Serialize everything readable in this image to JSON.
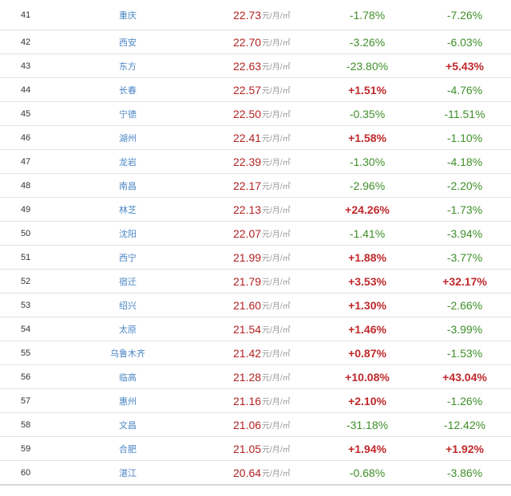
{
  "unit": "元/月/㎡",
  "colors": {
    "positive": "#c0282b",
    "negative": "#3f8f2a",
    "city_link": "#4a86c5",
    "price": "#b22222"
  },
  "rows": [
    {
      "rank": "41",
      "city": "重庆",
      "price": "22.73",
      "change1": "-1.78%",
      "change2": "-7.26%"
    },
    {
      "rank": "42",
      "city": "西安",
      "price": "22.70",
      "change1": "-3.26%",
      "change2": "-6.03%"
    },
    {
      "rank": "43",
      "city": "东方",
      "price": "22.63",
      "change1": "-23.80%",
      "change2": "+5.43%"
    },
    {
      "rank": "44",
      "city": "长春",
      "price": "22.57",
      "change1": "+1.51%",
      "change2": "-4.76%"
    },
    {
      "rank": "45",
      "city": "宁德",
      "price": "22.50",
      "change1": "-0.35%",
      "change2": "-11.51%"
    },
    {
      "rank": "46",
      "city": "湖州",
      "price": "22.41",
      "change1": "+1.58%",
      "change2": "-1.10%"
    },
    {
      "rank": "47",
      "city": "龙岩",
      "price": "22.39",
      "change1": "-1.30%",
      "change2": "-4.18%"
    },
    {
      "rank": "48",
      "city": "南昌",
      "price": "22.17",
      "change1": "-2.96%",
      "change2": "-2.20%"
    },
    {
      "rank": "49",
      "city": "林芝",
      "price": "22.13",
      "change1": "+24.26%",
      "change2": "-1.73%"
    },
    {
      "rank": "50",
      "city": "沈阳",
      "price": "22.07",
      "change1": "-1.41%",
      "change2": "-3.94%"
    },
    {
      "rank": "51",
      "city": "西宁",
      "price": "21.99",
      "change1": "+1.88%",
      "change2": "-3.77%"
    },
    {
      "rank": "52",
      "city": "宿迁",
      "price": "21.79",
      "change1": "+3.53%",
      "change2": "+32.17%"
    },
    {
      "rank": "53",
      "city": "绍兴",
      "price": "21.60",
      "change1": "+1.30%",
      "change2": "-2.66%"
    },
    {
      "rank": "54",
      "city": "太原",
      "price": "21.54",
      "change1": "+1.46%",
      "change2": "-3.99%"
    },
    {
      "rank": "55",
      "city": "乌鲁木齐",
      "price": "21.42",
      "change1": "+0.87%",
      "change2": "-1.53%"
    },
    {
      "rank": "56",
      "city": "临高",
      "price": "21.28",
      "change1": "+10.08%",
      "change2": "+43.04%"
    },
    {
      "rank": "57",
      "city": "惠州",
      "price": "21.16",
      "change1": "+2.10%",
      "change2": "-1.26%"
    },
    {
      "rank": "58",
      "city": "文昌",
      "price": "21.06",
      "change1": "-31.18%",
      "change2": "-12.42%"
    },
    {
      "rank": "59",
      "city": "合肥",
      "price": "21.05",
      "change1": "+1.94%",
      "change2": "+1.92%"
    },
    {
      "rank": "60",
      "city": "湛江",
      "price": "20.64",
      "change1": "-0.68%",
      "change2": "-3.86%"
    }
  ]
}
